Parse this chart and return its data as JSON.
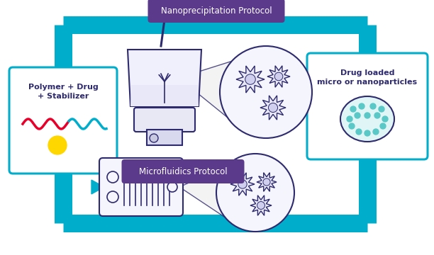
{
  "bg_color": "#ffffff",
  "arrow_color": "#00AECC",
  "box_border_color": "#00AECC",
  "box_fill_color": "#ffffff",
  "purple_label_bg": "#5B3A8C",
  "purple_label_text": "#ffffff",
  "dark_blue_text": "#2E2A6E",
  "nano_label": "Nanoprecipitation Protocol",
  "micro_label": "Microfluidics Protocol",
  "left_box_title": "Polymer + Drug\n+ Stabilizer",
  "right_box_title": "Drug loaded\nmicro or nanoparticles",
  "wave_red": "#E8002A",
  "wave_blue": "#00AECC",
  "dot_color": "#FFD700",
  "teal_dot_color": "#5BC8C8",
  "teal_dot_fill": "#e0f5f5",
  "particle_border": "#2E2A6E",
  "microfluidic_border": "#2E2A6E",
  "beaker_color": "#2E2A6E",
  "spiky_fill": "#e8e8f5",
  "spiky_inner": "#d0d0ee"
}
